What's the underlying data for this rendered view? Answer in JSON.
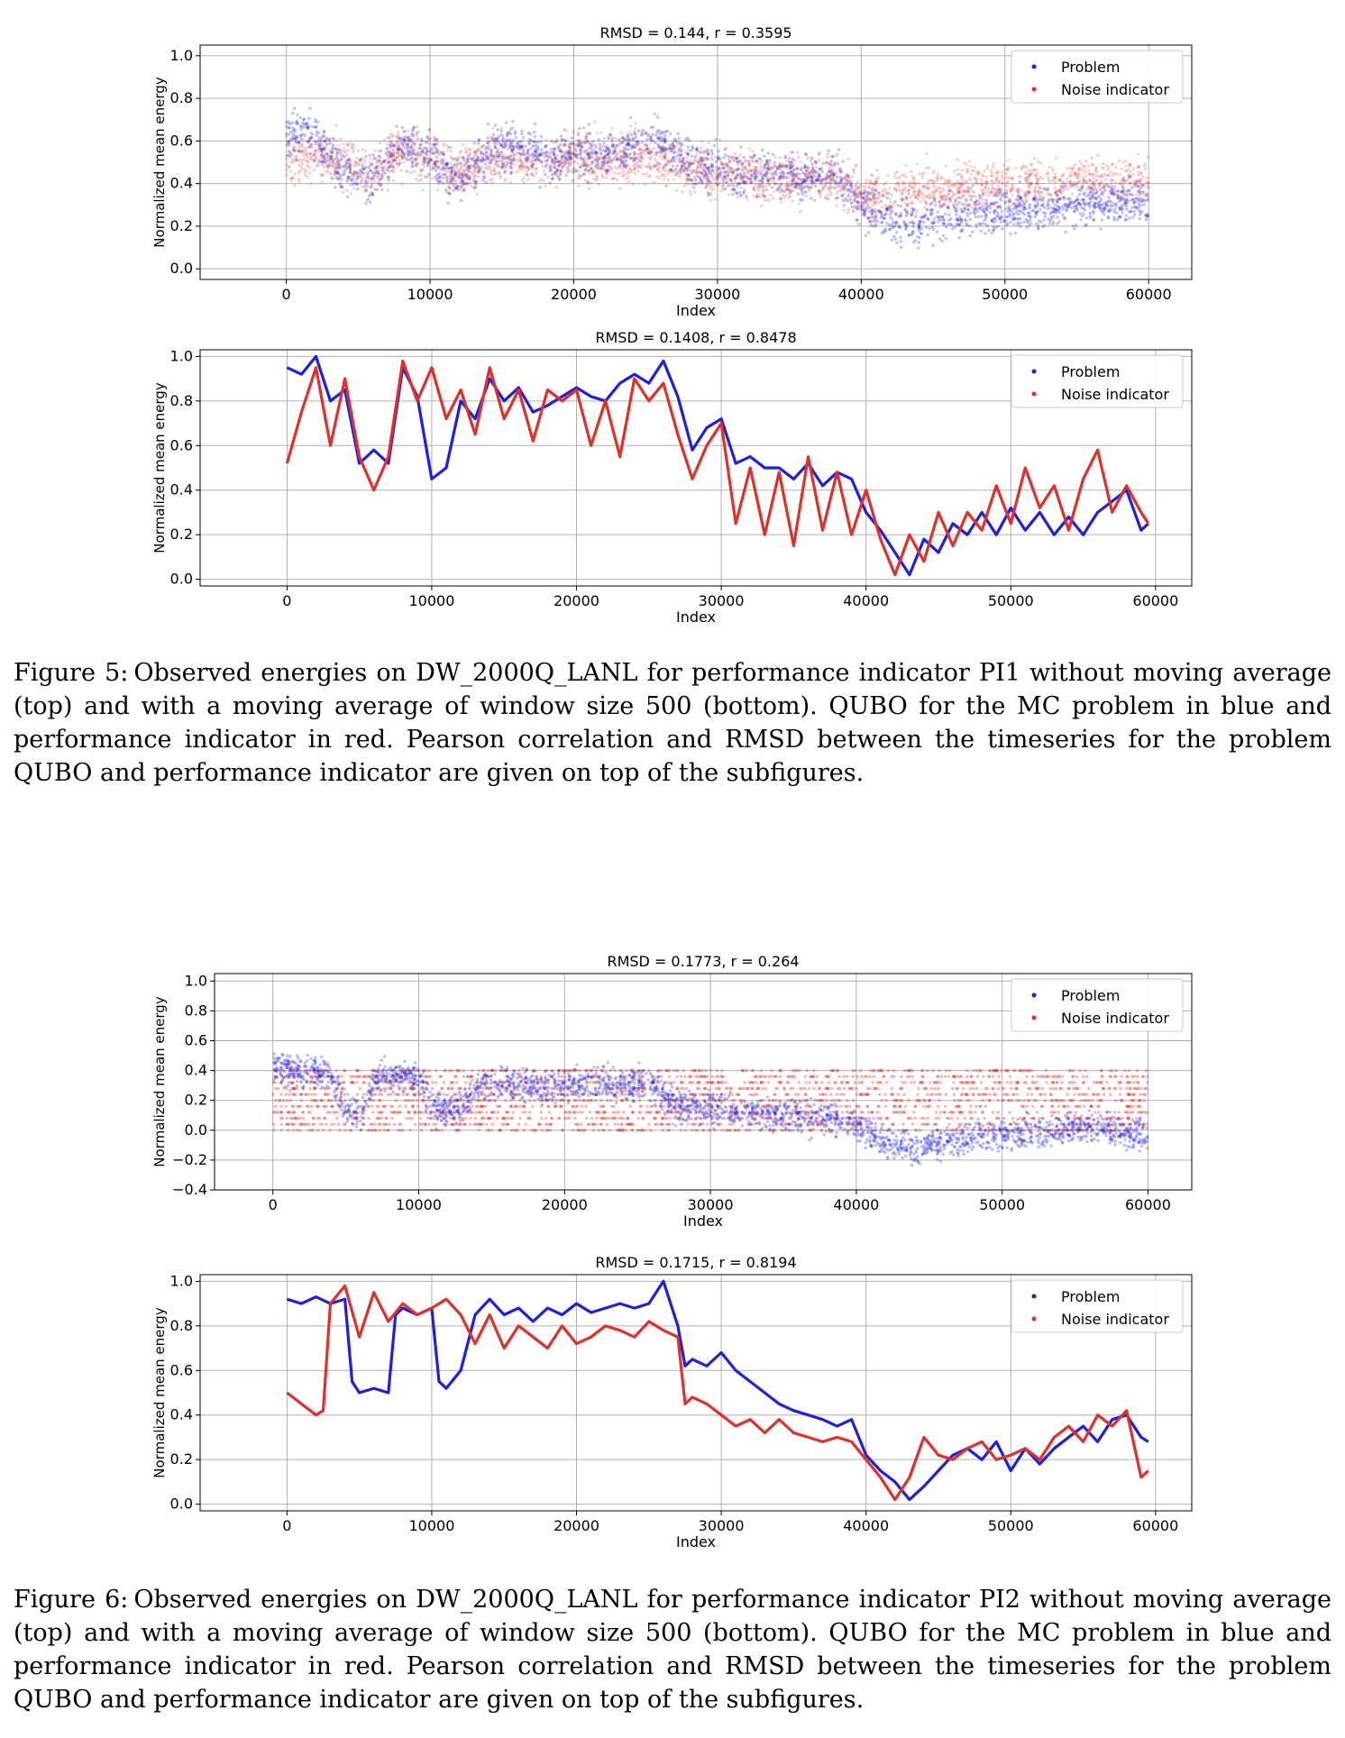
{
  "figures": [
    {
      "label": "Figure 5:",
      "caption": "Observed energies on DW_2000Q_LANL for performance indicator PI1 without moving average (top) and with a moving average of window size 500 (bottom). QUBO for the MC problem in blue and performance indicator in red. Pearson correlation and RMSD between the timeseries for the problem QUBO and performance indicator are given on top of the subfigures."
    },
    {
      "label": "Figure 6:",
      "caption": "Observed energies on DW_2000Q_LANL for performance indicator PI2 without moving average (top) and with a moving average of window size 500 (bottom). QUBO for the MC problem in blue and performance indicator in red. Pearson correlation and RMSD between the timeseries for the problem QUBO and performance indicator are given on top of the subfigures."
    }
  ],
  "colors": {
    "problem": "#1f1fe0",
    "noise": "#e0302a",
    "grid": "#b0b0b0"
  },
  "chart_data": [
    {
      "type": "scatter",
      "title": "RMSD = 0.144,  r = 0.3595",
      "xlabel": "Index",
      "ylabel": "Normalized mean energy",
      "xlim": [
        -6000,
        63000
      ],
      "ylim": [
        -0.05,
        1.05
      ],
      "xticks": [
        0,
        10000,
        20000,
        30000,
        40000,
        50000,
        60000
      ],
      "yticks": [
        0.0,
        0.2,
        0.4,
        0.6,
        0.8,
        1.0
      ],
      "ytick_labels": [
        "0.0",
        "0.2",
        "0.4",
        "0.6",
        "0.8",
        "1.0"
      ],
      "grid": true,
      "legend_position": "top-right",
      "noise_spread": 0.1,
      "series": [
        {
          "name": "Problem",
          "x": [
            0,
            2000,
            4000,
            6000,
            8000,
            10000,
            12000,
            14000,
            16000,
            18000,
            20000,
            22000,
            24000,
            26000,
            28000,
            30000,
            32000,
            34000,
            36000,
            38000,
            40000,
            42000,
            44000,
            46000,
            48000,
            50000,
            52000,
            54000,
            56000,
            58000,
            60000
          ],
          "values": [
            0.64,
            0.62,
            0.45,
            0.42,
            0.58,
            0.52,
            0.4,
            0.55,
            0.58,
            0.5,
            0.55,
            0.53,
            0.58,
            0.6,
            0.48,
            0.46,
            0.44,
            0.45,
            0.43,
            0.45,
            0.3,
            0.22,
            0.22,
            0.26,
            0.26,
            0.28,
            0.28,
            0.3,
            0.32,
            0.32,
            0.3
          ]
        },
        {
          "name": "Noise indicator",
          "x": [
            0,
            2000,
            4000,
            6000,
            8000,
            10000,
            12000,
            14000,
            16000,
            18000,
            20000,
            22000,
            24000,
            26000,
            28000,
            30000,
            32000,
            34000,
            36000,
            38000,
            40000,
            42000,
            44000,
            46000,
            48000,
            50000,
            52000,
            54000,
            56000,
            58000,
            60000
          ],
          "values": [
            0.52,
            0.52,
            0.5,
            0.45,
            0.55,
            0.52,
            0.45,
            0.52,
            0.52,
            0.5,
            0.52,
            0.52,
            0.52,
            0.52,
            0.48,
            0.45,
            0.45,
            0.43,
            0.42,
            0.42,
            0.36,
            0.35,
            0.36,
            0.38,
            0.38,
            0.4,
            0.4,
            0.4,
            0.42,
            0.42,
            0.4
          ]
        }
      ]
    },
    {
      "type": "line",
      "title": "RMSD = 0.1408,  r = 0.8478",
      "xlabel": "Index",
      "ylabel": "Normalized mean energy",
      "xlim": [
        -6000,
        62500
      ],
      "ylim": [
        -0.03,
        1.03
      ],
      "xticks": [
        0,
        10000,
        20000,
        30000,
        40000,
        50000,
        60000
      ],
      "yticks": [
        0.0,
        0.2,
        0.4,
        0.6,
        0.8,
        1.0
      ],
      "ytick_labels": [
        "0.0",
        "0.2",
        "0.4",
        "0.6",
        "0.8",
        "1.0"
      ],
      "grid": true,
      "legend_position": "top-right",
      "series": [
        {
          "name": "Problem",
          "x": [
            0,
            1000,
            2000,
            3000,
            4000,
            5000,
            6000,
            7000,
            8000,
            9000,
            10000,
            11000,
            12000,
            13000,
            14000,
            15000,
            16000,
            17000,
            18000,
            19000,
            20000,
            21000,
            22000,
            23000,
            24000,
            25000,
            26000,
            27000,
            28000,
            29000,
            30000,
            31000,
            32000,
            33000,
            34000,
            35000,
            36000,
            37000,
            38000,
            39000,
            40000,
            41000,
            42000,
            43000,
            44000,
            45000,
            46000,
            47000,
            48000,
            49000,
            50000,
            51000,
            52000,
            53000,
            54000,
            55000,
            56000,
            57000,
            58000,
            59000,
            59500
          ],
          "values": [
            0.95,
            0.92,
            1.0,
            0.8,
            0.85,
            0.52,
            0.58,
            0.52,
            0.95,
            0.82,
            0.45,
            0.5,
            0.8,
            0.72,
            0.9,
            0.8,
            0.86,
            0.75,
            0.78,
            0.82,
            0.86,
            0.82,
            0.8,
            0.88,
            0.92,
            0.88,
            0.98,
            0.82,
            0.58,
            0.68,
            0.72,
            0.52,
            0.55,
            0.5,
            0.5,
            0.45,
            0.52,
            0.42,
            0.48,
            0.45,
            0.3,
            0.22,
            0.12,
            0.02,
            0.18,
            0.12,
            0.25,
            0.2,
            0.3,
            0.2,
            0.32,
            0.22,
            0.3,
            0.2,
            0.28,
            0.2,
            0.3,
            0.35,
            0.4,
            0.22,
            0.25
          ]
        },
        {
          "name": "Noise indicator",
          "x": [
            0,
            1000,
            2000,
            3000,
            4000,
            5000,
            6000,
            7000,
            8000,
            9000,
            10000,
            11000,
            12000,
            13000,
            14000,
            15000,
            16000,
            17000,
            18000,
            19000,
            20000,
            21000,
            22000,
            23000,
            24000,
            25000,
            26000,
            27000,
            28000,
            29000,
            30000,
            31000,
            32000,
            33000,
            34000,
            35000,
            36000,
            37000,
            38000,
            39000,
            40000,
            41000,
            42000,
            43000,
            44000,
            45000,
            46000,
            47000,
            48000,
            49000,
            50000,
            51000,
            52000,
            53000,
            54000,
            55000,
            56000,
            57000,
            58000,
            59000,
            59500
          ],
          "values": [
            0.52,
            0.75,
            0.95,
            0.6,
            0.9,
            0.55,
            0.4,
            0.55,
            0.98,
            0.8,
            0.95,
            0.72,
            0.85,
            0.65,
            0.95,
            0.72,
            0.85,
            0.62,
            0.85,
            0.8,
            0.85,
            0.6,
            0.8,
            0.55,
            0.9,
            0.8,
            0.88,
            0.65,
            0.45,
            0.6,
            0.7,
            0.25,
            0.5,
            0.2,
            0.48,
            0.15,
            0.55,
            0.22,
            0.48,
            0.2,
            0.4,
            0.18,
            0.02,
            0.2,
            0.08,
            0.3,
            0.15,
            0.3,
            0.22,
            0.42,
            0.25,
            0.5,
            0.32,
            0.42,
            0.22,
            0.45,
            0.58,
            0.3,
            0.42,
            0.3,
            0.25
          ]
        }
      ]
    },
    {
      "type": "scatter",
      "title": "RMSD = 0.1773,  r = 0.264",
      "xlabel": "Index",
      "ylabel": "Normalized mean energy",
      "xlim": [
        -4000,
        63000
      ],
      "ylim": [
        -0.4,
        1.05
      ],
      "xticks": [
        0,
        10000,
        20000,
        30000,
        40000,
        50000,
        60000
      ],
      "yticks": [
        -0.4,
        -0.2,
        0.0,
        0.2,
        0.4,
        0.6,
        0.8,
        1.0
      ],
      "ytick_labels": [
        "−0.4",
        "−0.2",
        "0.0",
        "0.2",
        "0.4",
        "0.6",
        "0.8",
        "1.0"
      ],
      "grid": true,
      "legend_position": "top-right",
      "noise_spread": 0.1,
      "series": [
        {
          "name": "Problem",
          "x": [
            0,
            2000,
            4000,
            5000,
            6000,
            7000,
            8000,
            10000,
            11000,
            12000,
            13000,
            14000,
            16000,
            18000,
            20000,
            22000,
            24000,
            26000,
            27000,
            28000,
            30000,
            32000,
            34000,
            36000,
            38000,
            40000,
            42000,
            44000,
            46000,
            48000,
            50000,
            52000,
            54000,
            56000,
            58000,
            60000
          ],
          "values": [
            0.42,
            0.4,
            0.38,
            0.12,
            0.12,
            0.35,
            0.36,
            0.35,
            0.15,
            0.14,
            0.15,
            0.32,
            0.3,
            0.3,
            0.3,
            0.32,
            0.3,
            0.32,
            0.2,
            0.15,
            0.15,
            0.12,
            0.1,
            0.1,
            0.08,
            0.05,
            -0.1,
            -0.12,
            -0.08,
            -0.05,
            -0.04,
            -0.02,
            0.0,
            0.02,
            0.0,
            -0.05
          ]
        },
        {
          "name": "Noise indicator",
          "x": [
            0,
            60000
          ],
          "values": [
            0.15,
            0.15
          ],
          "bands": [
            0.0,
            0.04,
            0.08,
            0.12,
            0.16,
            0.2,
            0.24,
            0.28,
            0.32,
            0.36,
            0.4
          ]
        }
      ]
    },
    {
      "type": "line",
      "title": "RMSD = 0.1715,  r = 0.8194",
      "xlabel": "Index",
      "ylabel": "Normalized mean energy",
      "xlim": [
        -6000,
        62500
      ],
      "ylim": [
        -0.03,
        1.03
      ],
      "xticks": [
        0,
        10000,
        20000,
        30000,
        40000,
        50000,
        60000
      ],
      "yticks": [
        0.0,
        0.2,
        0.4,
        0.6,
        0.8,
        1.0
      ],
      "ytick_labels": [
        "0.0",
        "0.2",
        "0.4",
        "0.6",
        "0.8",
        "1.0"
      ],
      "grid": true,
      "legend_position": "top-right",
      "series": [
        {
          "name": "Problem",
          "x": [
            0,
            1000,
            2000,
            3000,
            4000,
            4500,
            5000,
            6000,
            7000,
            7500,
            8000,
            9000,
            10000,
            10500,
            11000,
            12000,
            13000,
            14000,
            15000,
            16000,
            17000,
            18000,
            19000,
            20000,
            21000,
            22000,
            23000,
            24000,
            25000,
            26000,
            27000,
            27500,
            28000,
            29000,
            30000,
            31000,
            32000,
            33000,
            34000,
            35000,
            36000,
            37000,
            38000,
            39000,
            40000,
            41000,
            42000,
            43000,
            44000,
            45000,
            46000,
            47000,
            48000,
            49000,
            50000,
            51000,
            52000,
            53000,
            54000,
            55000,
            56000,
            57000,
            58000,
            59000,
            59500
          ],
          "values": [
            0.92,
            0.9,
            0.93,
            0.9,
            0.92,
            0.55,
            0.5,
            0.52,
            0.5,
            0.85,
            0.88,
            0.85,
            0.88,
            0.55,
            0.52,
            0.6,
            0.85,
            0.92,
            0.85,
            0.88,
            0.82,
            0.88,
            0.85,
            0.9,
            0.86,
            0.88,
            0.9,
            0.88,
            0.9,
            1.0,
            0.8,
            0.62,
            0.65,
            0.62,
            0.68,
            0.6,
            0.55,
            0.5,
            0.45,
            0.42,
            0.4,
            0.38,
            0.35,
            0.38,
            0.22,
            0.15,
            0.1,
            0.02,
            0.08,
            0.15,
            0.22,
            0.25,
            0.2,
            0.28,
            0.15,
            0.25,
            0.18,
            0.25,
            0.3,
            0.35,
            0.28,
            0.38,
            0.4,
            0.3,
            0.28
          ]
        },
        {
          "name": "Noise indicator",
          "x": [
            0,
            1000,
            2000,
            2500,
            3000,
            4000,
            5000,
            6000,
            7000,
            8000,
            9000,
            10000,
            11000,
            12000,
            13000,
            14000,
            15000,
            16000,
            17000,
            18000,
            19000,
            20000,
            21000,
            22000,
            23000,
            24000,
            25000,
            26000,
            27000,
            27500,
            28000,
            29000,
            30000,
            31000,
            32000,
            33000,
            34000,
            35000,
            36000,
            37000,
            38000,
            39000,
            40000,
            41000,
            42000,
            43000,
            44000,
            45000,
            46000,
            47000,
            48000,
            49000,
            50000,
            51000,
            52000,
            53000,
            54000,
            55000,
            56000,
            57000,
            58000,
            59000,
            59500
          ],
          "values": [
            0.5,
            0.45,
            0.4,
            0.42,
            0.9,
            0.98,
            0.75,
            0.95,
            0.82,
            0.9,
            0.85,
            0.88,
            0.92,
            0.85,
            0.72,
            0.85,
            0.7,
            0.8,
            0.75,
            0.7,
            0.8,
            0.72,
            0.75,
            0.8,
            0.78,
            0.75,
            0.82,
            0.78,
            0.75,
            0.45,
            0.48,
            0.45,
            0.4,
            0.35,
            0.38,
            0.32,
            0.38,
            0.32,
            0.3,
            0.28,
            0.3,
            0.28,
            0.2,
            0.12,
            0.02,
            0.12,
            0.3,
            0.22,
            0.2,
            0.25,
            0.28,
            0.2,
            0.22,
            0.25,
            0.2,
            0.3,
            0.35,
            0.28,
            0.4,
            0.35,
            0.42,
            0.12,
            0.15
          ]
        }
      ]
    }
  ]
}
